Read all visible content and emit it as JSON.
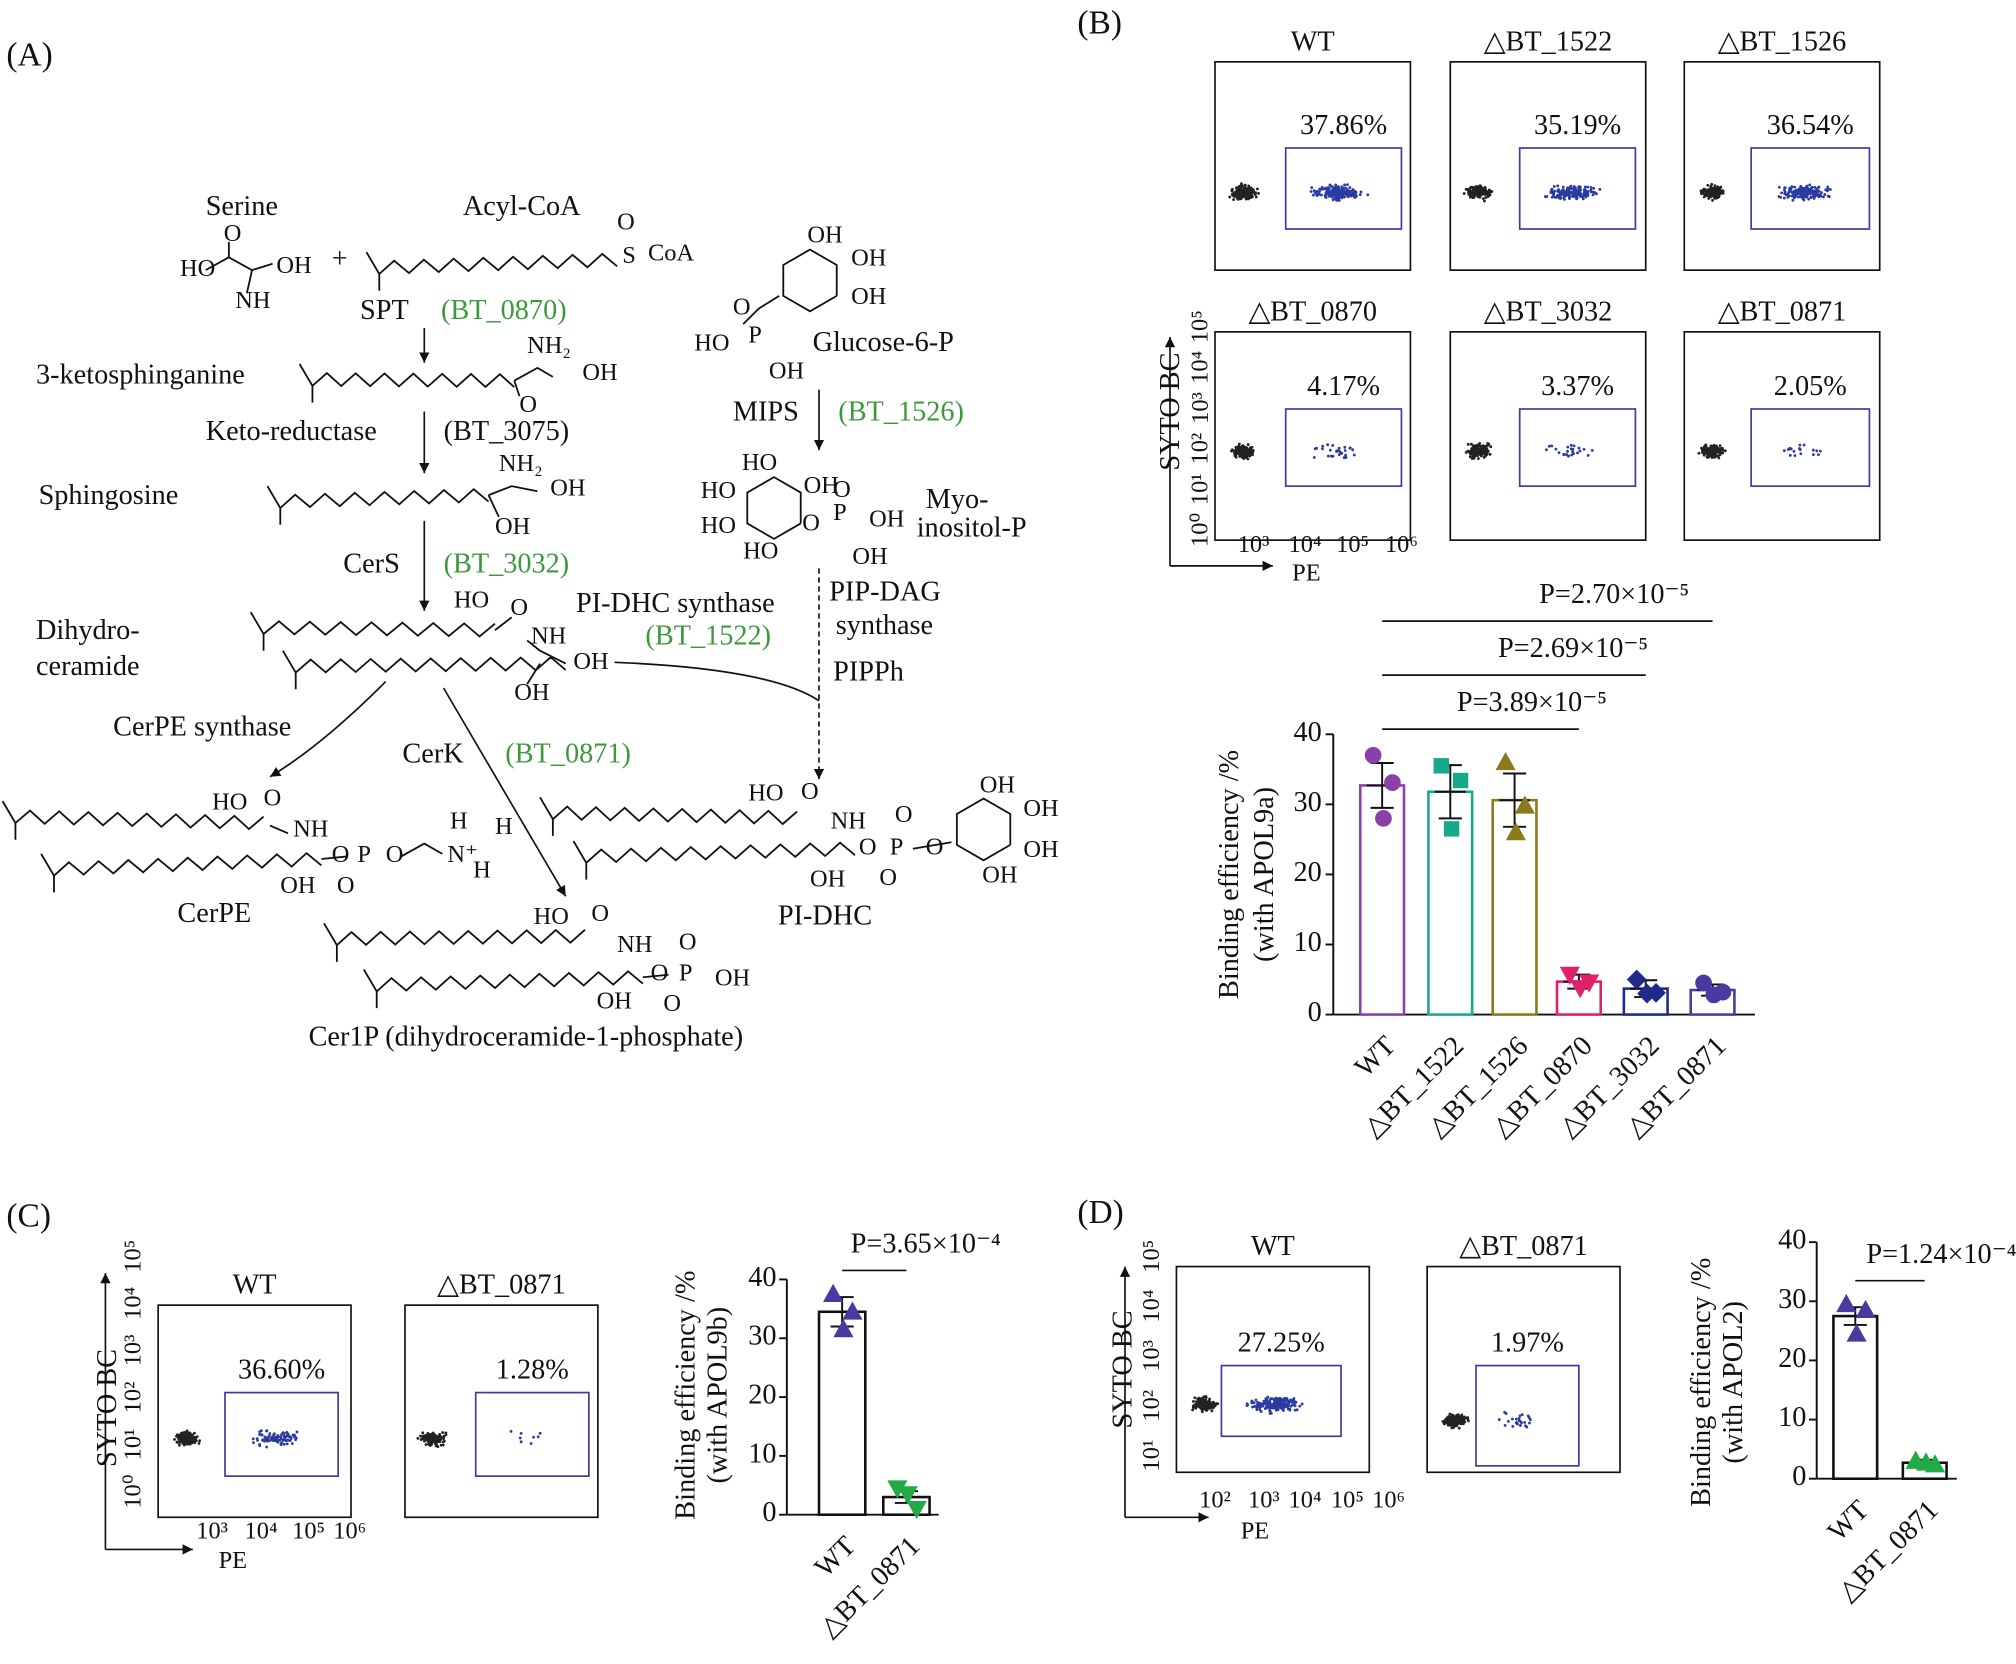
{
  "panels": [
    "(A)",
    "(B)",
    "(C)",
    "(D)"
  ],
  "pathway": {
    "texts": [
      "Serine",
      "Acyl-CoA",
      "SPT",
      "3-ketosphinganine",
      "Keto-reductase",
      "(BT_3075)",
      "Sphingosine",
      "CerS",
      "Dihydro-",
      "ceramide",
      "PI-DHC synthase",
      "CerPE synthase",
      "CerK",
      "Glucose-6-P",
      "MIPS",
      "Myo-",
      "inositol-P",
      "PIP-DAG",
      "synthase",
      "PIPPh",
      "CerPE",
      "PI-DHC",
      "Cer1P (dihydroceramide-1-phosphate)",
      "+"
    ],
    "genes": [
      {
        "label": "(BT_0870)",
        "color": "#3c9a3c"
      },
      {
        "label": "(BT_3032)",
        "color": "#3c9a3c"
      },
      {
        "label": "(BT_1522)",
        "color": "#3c9a3c"
      },
      {
        "label": "(BT_0871)",
        "color": "#3c9a3c"
      },
      {
        "label": "(BT_1526)",
        "color": "#3c9a3c"
      }
    ],
    "atoms": [
      "O",
      "HO",
      "OH",
      "NH",
      "S",
      "CoA",
      "O",
      "NH₂",
      "OH",
      "O",
      "NH₂",
      "OH",
      "OH",
      "HO",
      "O",
      "NH",
      "OH",
      "OH",
      "OH",
      "OH",
      "OH",
      "O",
      "HO",
      "P",
      "OH",
      "HO",
      "HO",
      "OH",
      "HO",
      "O",
      "P",
      "OH",
      "HO",
      "OH",
      "O",
      "HO",
      "O",
      "NH",
      "O",
      "P",
      "O",
      "N⁺",
      "H",
      "H",
      "H",
      "OH",
      "O",
      "HO",
      "O",
      "NH",
      "O",
      "P",
      "OH",
      "O",
      "OH",
      "O",
      "HO",
      "O",
      "NH",
      "O",
      "P",
      "O",
      "O",
      "OH",
      "OH",
      "OH",
      "OH",
      "OH",
      "O"
    ]
  },
  "flow_panels": [
    {
      "y_label": "SYTO BC",
      "x_label": "PE",
      "y_ticks": [
        "10⁰",
        "10¹",
        "10²",
        "10³",
        "10⁴",
        "10⁵"
      ],
      "x_ticks": [
        "10³",
        "10⁴",
        "10⁵",
        "10⁶"
      ],
      "plots": [
        {
          "title": "WT",
          "percent": "37.86%"
        },
        {
          "title": "△BT_1522",
          "percent": "35.19%"
        },
        {
          "title": "△BT_1526",
          "percent": "36.54%"
        },
        {
          "title": "△BT_0870",
          "percent": "4.17%"
        },
        {
          "title": "△BT_3032",
          "percent": "3.37%"
        },
        {
          "title": "△BT_0871",
          "percent": "2.05%"
        }
      ]
    },
    {
      "y_label": "SYTO BC",
      "x_label": "PE",
      "y_ticks": [
        "10⁰",
        "10¹",
        "10²",
        "10³",
        "10⁴",
        "10⁵"
      ],
      "x_ticks": [
        "10³",
        "10⁴",
        "10⁵",
        "10⁶"
      ],
      "plots": [
        {
          "title": "WT",
          "percent": "36.60%"
        },
        {
          "title": "△BT_0871",
          "percent": "1.28%"
        }
      ]
    },
    {
      "y_label": "SYTO BC",
      "x_label": "PE",
      "y_ticks": [
        "10¹",
        "10²",
        "10³",
        "10⁴",
        "10⁵"
      ],
      "x_ticks": [
        "10²",
        "10³",
        "10⁴",
        "10⁵",
        "10⁶"
      ],
      "plots": [
        {
          "title": "WT",
          "percent": "27.25%"
        },
        {
          "title": "△BT_0871",
          "percent": "1.97%"
        }
      ]
    }
  ],
  "chart_data": [
    {
      "type": "bar",
      "ylabel": [
        "Binding efficiency /%",
        "(with APOL9a)"
      ],
      "categories": [
        "WT",
        "△BT_1522",
        "△BT_1526",
        "△BT_0870",
        "△BT_3032",
        "△BT_0871"
      ],
      "values": [
        32.7,
        31.8,
        30.6,
        4.7,
        3.7,
        3.5
      ],
      "errors": [
        3.2,
        3.8,
        3.8,
        1.0,
        1.2,
        0.8
      ],
      "points": [
        [
          37,
          28,
          33.1
        ],
        [
          35.5,
          26.5,
          33.4
        ],
        [
          36,
          26,
          29.8
        ],
        [
          5.7,
          3.8,
          4.6
        ],
        [
          5.0,
          3.0,
          3.1
        ],
        [
          4.5,
          2.8,
          3.2
        ]
      ],
      "colors": [
        "#8b3fa8",
        "#1aa88a",
        "#8a7a1a",
        "#e0206a",
        "#1f2a8a",
        "#4a3aa0"
      ],
      "markers": [
        "circle",
        "square",
        "triangle",
        "triangle-down",
        "diamond",
        "circle"
      ],
      "ylim": [
        0,
        40
      ],
      "yticks": [
        0,
        10,
        20,
        30,
        40
      ],
      "annotations": [
        "P=3.89×10⁻⁵",
        "P=2.69×10⁻⁵",
        "P=2.70×10⁻⁵"
      ]
    },
    {
      "type": "bar",
      "ylabel": [
        "Binding efficiency /%",
        "(with APOL9b)"
      ],
      "categories": [
        "WT",
        "△BT_0871"
      ],
      "values": [
        34.5,
        3.0
      ],
      "errors": [
        2.5,
        1.0
      ],
      "points": [
        [
          37.5,
          31.5,
          34.5
        ],
        [
          4.5,
          3.5,
          1.0
        ]
      ],
      "colors": [
        "#4a3aa0",
        "#22aa44"
      ],
      "markers": [
        "triangle",
        "triangle-down"
      ],
      "ylim": [
        0,
        40
      ],
      "yticks": [
        0,
        10,
        20,
        30,
        40
      ],
      "annotations": [
        "P=3.65×10⁻⁴"
      ]
    },
    {
      "type": "bar",
      "ylabel": [
        "Binding efficiency /%",
        "(with APOL2)"
      ],
      "categories": [
        "WT",
        "△BT_0871"
      ],
      "values": [
        27.5,
        2.7
      ],
      "errors": [
        1.5,
        0.5
      ],
      "points": [
        [
          29.5,
          24.5,
          28.5
        ],
        [
          3.0,
          2.7,
          2.4
        ]
      ],
      "colors": [
        "#4a3aa0",
        "#22aa44"
      ],
      "markers": [
        "triangle",
        "triangle"
      ],
      "ylim": [
        0,
        40
      ],
      "yticks": [
        0,
        10,
        20,
        30,
        40
      ],
      "annotations": [
        "P=1.24×10⁻⁴"
      ]
    }
  ]
}
